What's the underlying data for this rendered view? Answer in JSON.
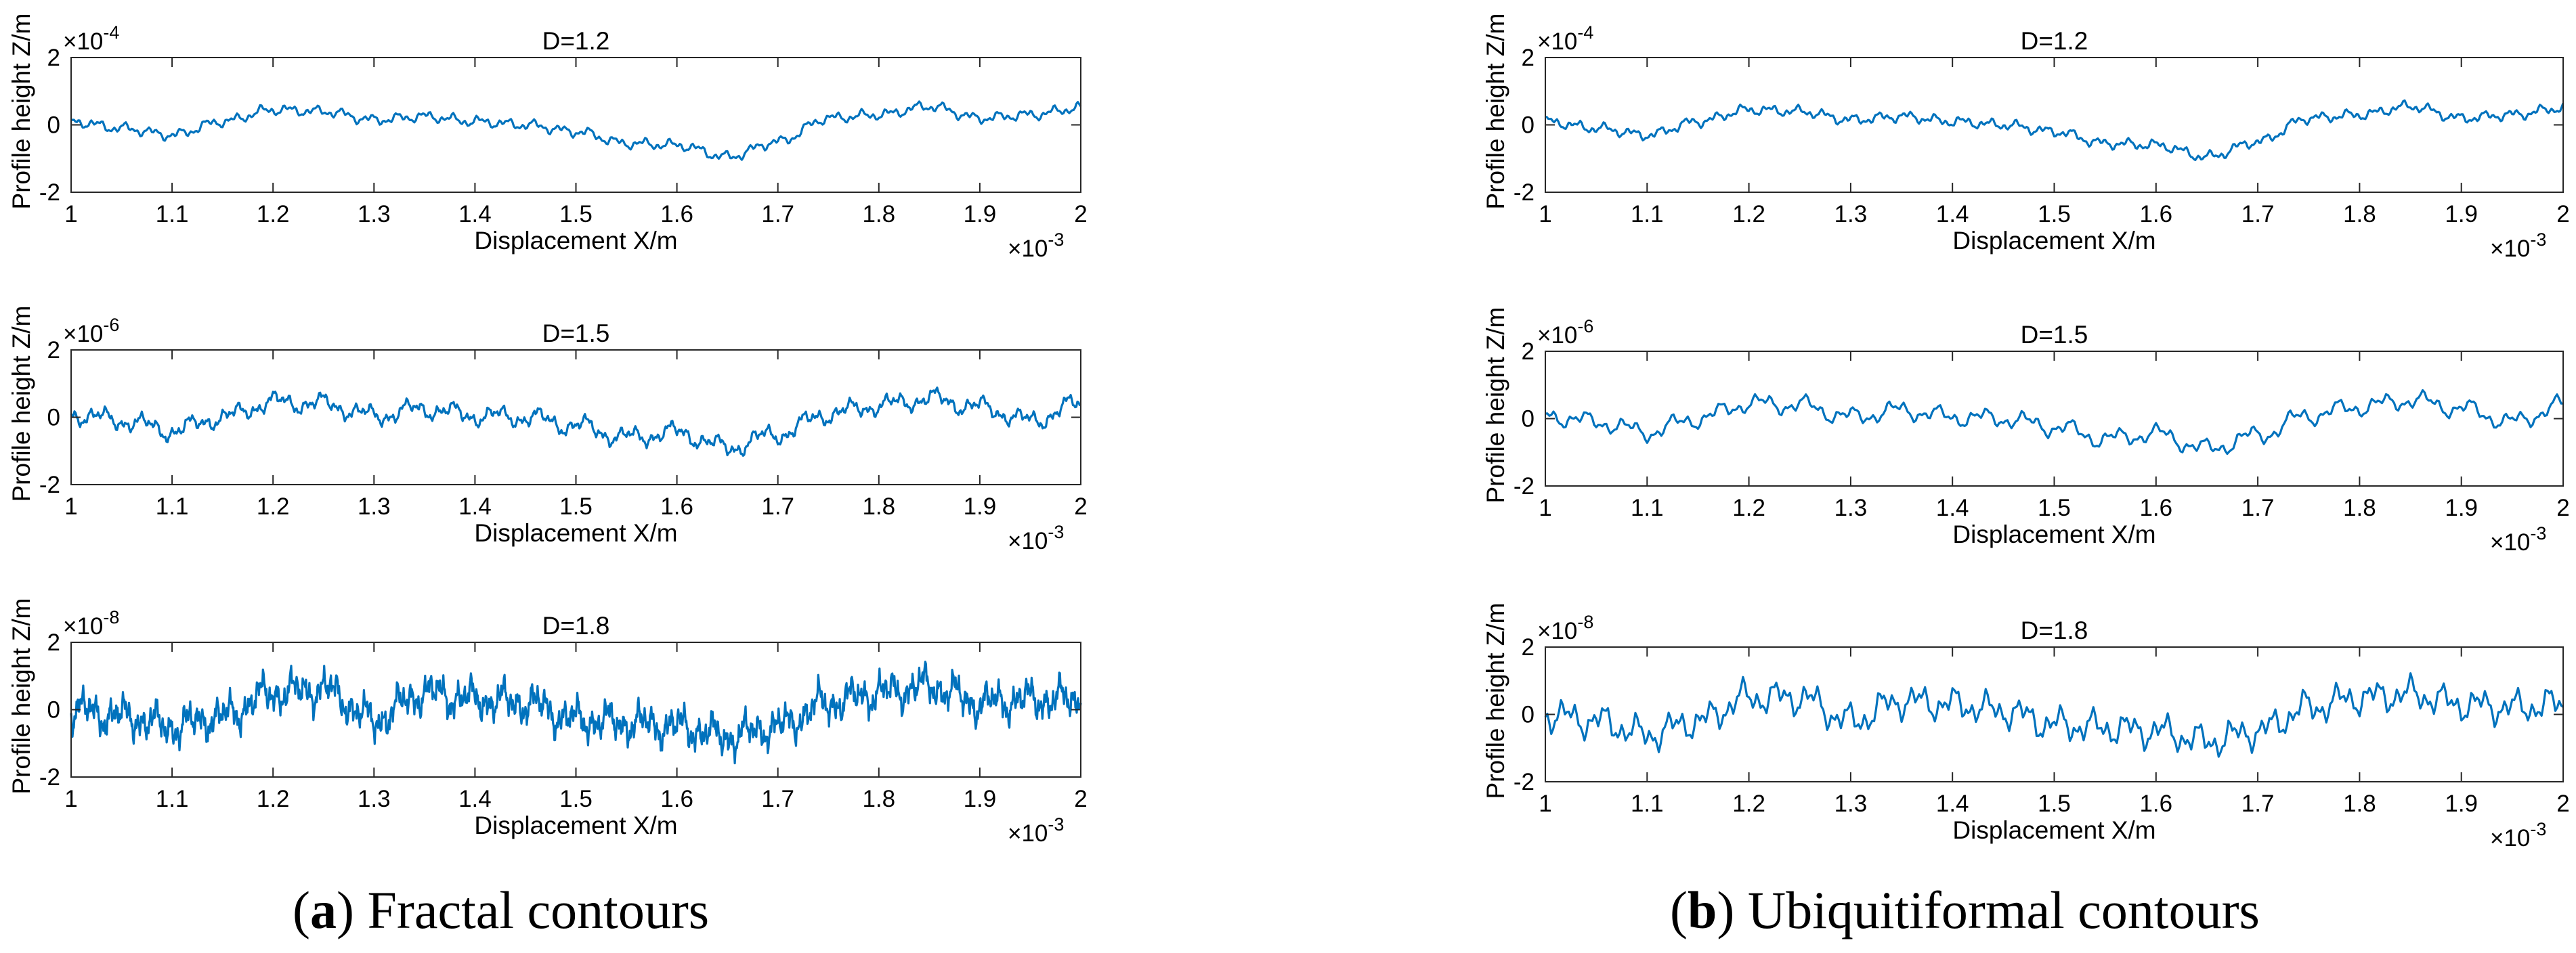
{
  "figure": {
    "caption_a": {
      "letter": "a",
      "text": "Fractal contours"
    },
    "caption_b": {
      "letter": "b",
      "text": "Ubiquitiformal contours"
    }
  },
  "colors": {
    "line": "#0072BD",
    "axis": "#262626"
  },
  "chart_data": [
    {
      "id": "a-1",
      "panel": "a",
      "type": "line",
      "title": "D=1.2",
      "xlabel": "Displacement  X/m",
      "ylabel": "Profile height  Z/m",
      "xlim": [
        1,
        2
      ],
      "ylim": [
        -2,
        2
      ],
      "x_exponent": "-3",
      "y_exponent": "-4",
      "xticks": [
        "1",
        "1.1",
        "1.2",
        "1.3",
        "1.4",
        "1.5",
        "1.6",
        "1.7",
        "1.8",
        "1.9",
        "2"
      ],
      "yticks": [
        "-2",
        "0",
        "2"
      ],
      "series": [
        {
          "name": "profile",
          "roughness": "low",
          "x": [
            1.0,
            1.05,
            1.1,
            1.15,
            1.2,
            1.25,
            1.3,
            1.35,
            1.4,
            1.45,
            1.5,
            1.55,
            1.6,
            1.65,
            1.7,
            1.75,
            1.8,
            1.85,
            1.9,
            1.95,
            2.0
          ],
          "y": [
            0.1,
            -0.1,
            -0.3,
            0.1,
            0.45,
            0.4,
            0.15,
            0.25,
            0.1,
            0.0,
            -0.2,
            -0.55,
            -0.6,
            -0.95,
            -0.5,
            0.2,
            0.3,
            0.55,
            0.2,
            0.3,
            0.5
          ]
        }
      ]
    },
    {
      "id": "a-2",
      "panel": "a",
      "type": "line",
      "title": "D=1.5",
      "xlabel": "Displacement  X/m",
      "ylabel": "Profile height  Z/m",
      "xlim": [
        1,
        2
      ],
      "ylim": [
        -2,
        2
      ],
      "x_exponent": "-3",
      "y_exponent": "-6",
      "xticks": [
        "1",
        "1.1",
        "1.2",
        "1.3",
        "1.4",
        "1.5",
        "1.6",
        "1.7",
        "1.8",
        "1.9",
        "2"
      ],
      "yticks": [
        "-2",
        "0",
        "2"
      ],
      "series": [
        {
          "name": "profile",
          "roughness": "medium",
          "x": [
            1.0,
            1.05,
            1.1,
            1.15,
            1.2,
            1.25,
            1.3,
            1.35,
            1.4,
            1.45,
            1.5,
            1.55,
            1.6,
            1.65,
            1.7,
            1.75,
            1.8,
            1.85,
            1.9,
            1.95,
            2.0
          ],
          "y": [
            0.1,
            -0.1,
            -0.4,
            0.0,
            0.45,
            0.4,
            0.05,
            0.25,
            0.05,
            0.0,
            -0.25,
            -0.6,
            -0.45,
            -0.9,
            -0.5,
            0.1,
            0.35,
            0.55,
            0.3,
            -0.1,
            0.4
          ]
        }
      ]
    },
    {
      "id": "a-3",
      "panel": "a",
      "type": "line",
      "title": "D=1.8",
      "xlabel": "Displacement  X/m",
      "ylabel": "Profile height  Z/m",
      "xlim": [
        1,
        2
      ],
      "ylim": [
        -2,
        2
      ],
      "x_exponent": "-3",
      "y_exponent": "-8",
      "xticks": [
        "1",
        "1.1",
        "1.2",
        "1.3",
        "1.4",
        "1.5",
        "1.6",
        "1.7",
        "1.8",
        "1.9",
        "2"
      ],
      "yticks": [
        "-2",
        "0",
        "2"
      ],
      "series": [
        {
          "name": "profile",
          "roughness": "high",
          "x": [
            1.0,
            1.05,
            1.1,
            1.15,
            1.2,
            1.25,
            1.3,
            1.35,
            1.4,
            1.45,
            1.5,
            1.55,
            1.6,
            1.65,
            1.7,
            1.75,
            1.8,
            1.85,
            1.9,
            1.95,
            2.0
          ],
          "y": [
            0.0,
            -0.2,
            -0.5,
            -0.2,
            0.5,
            0.6,
            -0.3,
            0.5,
            0.3,
            0.2,
            -0.3,
            -0.4,
            -0.5,
            -0.8,
            -0.5,
            0.2,
            0.5,
            0.7,
            0.2,
            0.3,
            0.3
          ]
        }
      ]
    },
    {
      "id": "b-1",
      "panel": "b",
      "type": "line",
      "title": "D=1.2",
      "xlabel": "Displacement  X/m",
      "ylabel": "Profile height  Z/m",
      "xlim": [
        1,
        2
      ],
      "ylim": [
        -2,
        2
      ],
      "x_exponent": "-3",
      "y_exponent": "-4",
      "xticks": [
        "1",
        "1.1",
        "1.2",
        "1.3",
        "1.4",
        "1.5",
        "1.6",
        "1.7",
        "1.8",
        "1.9",
        "2"
      ],
      "yticks": [
        "-2",
        "0",
        "2"
      ],
      "series": [
        {
          "name": "profile",
          "roughness": "low",
          "x": [
            1.0,
            1.05,
            1.1,
            1.15,
            1.2,
            1.25,
            1.3,
            1.35,
            1.4,
            1.45,
            1.5,
            1.55,
            1.6,
            1.65,
            1.7,
            1.75,
            1.8,
            1.85,
            1.9,
            1.95,
            2.0
          ],
          "y": [
            0.1,
            -0.1,
            -0.3,
            0.1,
            0.45,
            0.4,
            0.15,
            0.25,
            0.1,
            0.0,
            -0.2,
            -0.55,
            -0.6,
            -0.95,
            -0.5,
            0.2,
            0.3,
            0.55,
            0.2,
            0.3,
            0.5
          ]
        }
      ]
    },
    {
      "id": "b-2",
      "panel": "b",
      "type": "line",
      "title": "D=1.5",
      "xlabel": "Displacement  X/m",
      "ylabel": "Profile height  Z/m",
      "xlim": [
        1,
        2
      ],
      "ylim": [
        -2,
        2
      ],
      "x_exponent": "-3",
      "y_exponent": "-6",
      "xticks": [
        "1",
        "1.1",
        "1.2",
        "1.3",
        "1.4",
        "1.5",
        "1.6",
        "1.7",
        "1.8",
        "1.9",
        "2"
      ],
      "yticks": [
        "-2",
        "0",
        "2"
      ],
      "series": [
        {
          "name": "profile",
          "roughness": "medium-smooth",
          "x": [
            1.0,
            1.05,
            1.1,
            1.15,
            1.2,
            1.25,
            1.3,
            1.35,
            1.4,
            1.45,
            1.5,
            1.55,
            1.6,
            1.65,
            1.7,
            1.75,
            1.8,
            1.85,
            1.9,
            1.95,
            2.0
          ],
          "y": [
            0.1,
            -0.1,
            -0.4,
            0.0,
            0.45,
            0.4,
            0.05,
            0.25,
            0.05,
            0.0,
            -0.25,
            -0.6,
            -0.45,
            -0.9,
            -0.5,
            0.1,
            0.35,
            0.55,
            0.3,
            -0.1,
            0.4
          ]
        }
      ]
    },
    {
      "id": "b-3",
      "panel": "b",
      "type": "line",
      "title": "D=1.8",
      "xlabel": "Displacement  X/m",
      "ylabel": "Profile height  Z/m",
      "xlim": [
        1,
        2
      ],
      "ylim": [
        -2,
        2
      ],
      "x_exponent": "-3",
      "y_exponent": "-8",
      "xticks": [
        "1",
        "1.1",
        "1.2",
        "1.3",
        "1.4",
        "1.5",
        "1.6",
        "1.7",
        "1.8",
        "1.9",
        "2"
      ],
      "yticks": [
        "-2",
        "0",
        "2"
      ],
      "series": [
        {
          "name": "profile",
          "roughness": "high-smooth",
          "x": [
            1.0,
            1.05,
            1.1,
            1.15,
            1.2,
            1.25,
            1.3,
            1.35,
            1.4,
            1.45,
            1.5,
            1.55,
            1.6,
            1.65,
            1.7,
            1.75,
            1.8,
            1.85,
            1.9,
            1.95,
            2.0
          ],
          "y": [
            0.0,
            -0.2,
            -0.6,
            -0.2,
            0.5,
            0.5,
            -0.2,
            0.4,
            0.3,
            0.1,
            -0.3,
            -0.4,
            -0.5,
            -0.8,
            -0.5,
            0.2,
            0.5,
            0.6,
            0.3,
            0.2,
            0.3
          ]
        }
      ]
    }
  ]
}
